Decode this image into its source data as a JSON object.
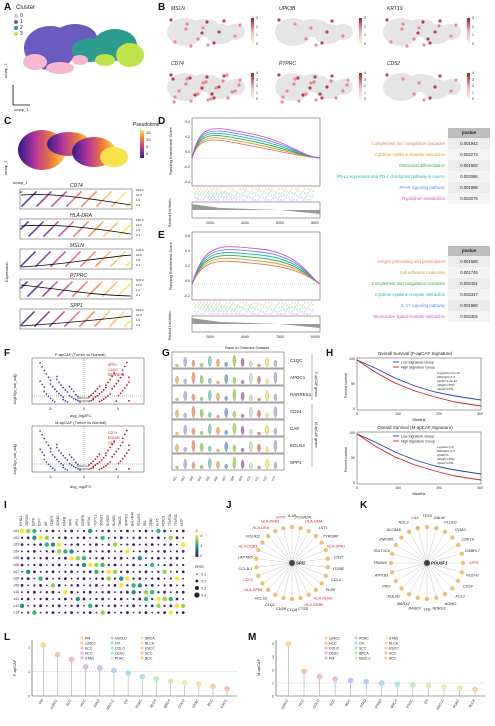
{
  "panels": {
    "A": {
      "letter": "A",
      "legend_title": "Cluster",
      "clusters": [
        "0",
        "1",
        "2",
        "3"
      ],
      "colors": [
        "#f7b6d2",
        "#6b5bbf",
        "#2e9b8f",
        "#bfe34a"
      ],
      "xlabel": "umap_1",
      "ylabel": "umap_2"
    },
    "B": {
      "letter": "B",
      "genes": [
        "MSLN",
        "UPK3B",
        "KRT19",
        "CD74",
        "PTPRC",
        "CD52"
      ],
      "scale_top": [
        "3",
        "2",
        "1",
        "0"
      ],
      "scale_mid": [
        "4",
        "3",
        "2",
        "1",
        "0"
      ]
    },
    "C": {
      "letter": "C",
      "legend_title": "Pseudotime",
      "scale": [
        "15",
        "10",
        "5",
        "0"
      ],
      "xlabel": "umap_1",
      "ylabel": "umap_2",
      "track_genes": [
        "CD74",
        "HLA-DRA",
        "MSLN",
        "PTPRC",
        "SPP1"
      ],
      "yaxis": "Expression",
      "track_scale": [
        "100.0",
        "10.0",
        "1.0",
        "0.1"
      ]
    },
    "D": {
      "letter": "D",
      "ylabel": "Running Enrichment Score",
      "ylabel2": "Ranked List Metric",
      "xlabel": "Rank in Ordered Dataset",
      "xticks": [
        "2000",
        "4000",
        "6000",
        "8000"
      ],
      "yticks": [
        "0.4",
        "0.2",
        "0.0",
        "-0.2",
        "-0.4"
      ],
      "table_header": "pvalue",
      "rows": [
        {
          "label": "Complement and coagulation cascades",
          "pvalue": "0.001942",
          "color": "#e07b5b"
        },
        {
          "label": "Cytokine-cytokine receptor interaction",
          "pvalue": "0.002273",
          "color": "#c9a227"
        },
        {
          "label": "Osteoclast differentiation",
          "pvalue": "0.001992",
          "color": "#2fae4a"
        },
        {
          "label": "PD-L1 expression and PD-1 checkpoint pathway in cancer",
          "pvalue": "0.002066",
          "color": "#1bb5b0"
        },
        {
          "label": "PPAR signaling pathway",
          "pvalue": "0.001996",
          "color": "#5b8de8"
        },
        {
          "label": "Tryptophan metabolism",
          "pvalue": "0.002079",
          "color": "#d451c9"
        }
      ]
    },
    "E": {
      "letter": "E",
      "ylabel": "Running Enrichment Score",
      "ylabel2": "Ranked List Metric",
      "xlabel": "Rank in Ordered Dataset",
      "xticks": [
        "2500",
        "5000",
        "7500",
        "10000"
      ],
      "yticks": [
        "0.6",
        "0.4",
        "0.2",
        "0.0",
        "-0.2"
      ],
      "table_header": "pvalue",
      "rows": [
        {
          "label": "Antigen processing and presentation",
          "pvalue": "0.001686",
          "color": "#e07b5b"
        },
        {
          "label": "Cell adhesion molecules",
          "pvalue": "0.001745",
          "color": "#c9a227"
        },
        {
          "label": "Complement and coagulation cascades",
          "pvalue": "0.002451",
          "color": "#2fae4a"
        },
        {
          "label": "Cytokine-cytokine receptor interaction",
          "pvalue": "0.002347",
          "color": "#1bb5b0"
        },
        {
          "label": "IL-17 signaling pathway",
          "pvalue": "0.001986",
          "color": "#5b8de8"
        },
        {
          "label": "Neuroactive ligand-receptor interaction",
          "pvalue": "0.002304",
          "color": "#d451c9"
        }
      ]
    },
    "F": {
      "letter": "F",
      "top_title": "F-apCAF (Tumor vs Normal)",
      "bottom_title": "M-apCAF (Tumor vs Normal)",
      "xlabel": "avg_log2FC",
      "ylabel": "-log10(p_val_adj)",
      "top_genes": [
        "SPP1",
        "C1QC",
        "RARRES1"
      ],
      "bottom_genes": [
        "CD74",
        "EGLN3",
        "CA9"
      ],
      "xticks": [
        "-5",
        "0",
        "5"
      ]
    },
    "G": {
      "letter": "G",
      "genes": [
        "C1QC",
        "APOC1",
        "RARRES1",
        "CD24",
        "CA9",
        "EGLN3",
        "SPP1"
      ],
      "group1": "F-apCAF genes",
      "group2": "M-apCAF genes",
      "clusters": [
        "c01",
        "c02",
        "c03",
        "c04",
        "c05",
        "c06",
        "c07",
        "c08",
        "c09",
        "c10",
        "c11",
        "c12",
        "c13"
      ]
    },
    "H": {
      "letter": "H",
      "title1": "Overall Survival (F-apCAF Signature)",
      "title2": "Overall Survival (M-apCAF Signature)",
      "legend_low": "Low Signature Group",
      "legend_high": "High Signature Group",
      "xlabel": "Months",
      "ylabel": "Percent survival",
      "stats1": [
        "Logrank p=1e-15",
        "HR(high)=1.3",
        "p(HR)=1.2e-16",
        "n(high)=4751",
        "n(low)=4751"
      ],
      "stats2": [
        "Logrank p=0",
        "HR(high)=1.5",
        "p(HR)=0",
        "n(high)=4751",
        "n(low)=4751"
      ],
      "xticks": [
        "0",
        "100",
        "200",
        "300"
      ],
      "yticks": [
        "100",
        "50",
        "0"
      ]
    },
    "I": {
      "letter": "I",
      "genes": [
        "MYBL2",
        "ZNF324",
        "E2F8",
        "E2F7",
        "AR",
        "FOXP2",
        "SOX10",
        "MAFB",
        "IRF8",
        "SPI1",
        "CEBPB",
        "HIF1A",
        "TCF7L2",
        "SMAD3",
        "RUNX3",
        "RUNX1",
        "TBX21",
        "NFATC2",
        "BHLHE40",
        "POU2F2",
        "REL",
        "ZEB2",
        "KLF5",
        "FOXC1",
        "TFAP2A",
        "TFAP2C",
        "MITF"
      ],
      "rows": [
        "c01",
        "c02",
        "c03",
        "c04",
        "c05",
        "c06",
        "c07",
        "c08",
        "c09",
        "c10",
        "c11",
        "c12",
        "c13"
      ],
      "z_label": "Z",
      "z_ticks": [
        "4",
        "2",
        "0"
      ],
      "rss_label": "RSS",
      "rss_ticks": [
        "0.1",
        "0.2",
        "0.3",
        "0.4"
      ]
    },
    "J": {
      "letter": "J",
      "hub": "SPI1",
      "nodes": [
        {
          "label": "IL1B",
          "red": false
        },
        {
          "label": "FCGR2A",
          "red": false
        },
        {
          "label": "HLA-DMA",
          "red": true
        },
        {
          "label": "LST1",
          "red": false
        },
        {
          "label": "TYROBP",
          "red": false
        },
        {
          "label": "HLA-DPA1",
          "red": true
        },
        {
          "label": "CD37",
          "red": false
        },
        {
          "label": "ITGB2",
          "red": false
        },
        {
          "label": "CCL4",
          "red": false
        },
        {
          "label": "PLEK",
          "red": false
        },
        {
          "label": "HLA-DQA2",
          "red": true
        },
        {
          "label": "HLA-DRB5",
          "red": true
        },
        {
          "label": "CTSS",
          "red": false
        },
        {
          "label": "C1QA",
          "red": false
        },
        {
          "label": "C1QB",
          "red": false
        },
        {
          "label": "C1QC",
          "red": false
        },
        {
          "label": "HCLS1",
          "red": false
        },
        {
          "label": "HLA-DPB1",
          "red": true
        },
        {
          "label": "CD74",
          "red": true
        },
        {
          "label": "CCL3L1",
          "red": false
        },
        {
          "label": "LAPTM5",
          "red": false
        },
        {
          "label": "HLA-DQB1",
          "red": true
        },
        {
          "label": "POLR2L",
          "red": false
        },
        {
          "label": "HLA-DRA",
          "red": true
        },
        {
          "label": "HLA-DRB1",
          "red": true
        },
        {
          "label": "SPP1",
          "red": true
        }
      ]
    },
    "K": {
      "letter": "K",
      "hub": "POU5F1",
      "nodes": [
        {
          "label": "TEX9",
          "red": false
        },
        {
          "label": "GALM",
          "red": false
        },
        {
          "label": "PLOD2",
          "red": false
        },
        {
          "label": "ITGA3",
          "red": false
        },
        {
          "label": "CDK18",
          "red": false
        },
        {
          "label": "OSBPL7",
          "red": false
        },
        {
          "label": "SPP1",
          "red": true
        },
        {
          "label": "NCEH1",
          "red": false
        },
        {
          "label": "CD24",
          "red": false
        },
        {
          "label": "KCL1",
          "red": false
        },
        {
          "label": "AGMO",
          "red": false
        },
        {
          "label": "NDRG1",
          "red": false
        },
        {
          "label": "TFR",
          "red": false
        },
        {
          "label": "RASEF",
          "red": false
        },
        {
          "label": "BARX2",
          "red": false
        },
        {
          "label": "EGLN1",
          "red": false
        },
        {
          "label": "PIK3",
          "red": false
        },
        {
          "label": "ATP1B1",
          "red": false
        },
        {
          "label": "TRIM44",
          "red": false
        },
        {
          "label": "SULT1C4",
          "red": false
        },
        {
          "label": "ZNF385",
          "red": false
        },
        {
          "label": "SLC6A6",
          "red": false
        },
        {
          "label": "NOL3",
          "red": false
        },
        {
          "label": "CA9",
          "red": true
        }
      ]
    },
    "L": {
      "letter": "L",
      "ylabel": "F-apCAF",
      "legend": [
        "PM",
        "ccRCC",
        "SCC",
        "HCC",
        "STAD",
        "NSCLC",
        "OV",
        "COLO",
        "CESC",
        "PDAC",
        "BRCA",
        "BLCA",
        "ESCC",
        "SCC",
        "BCC"
      ],
      "categories": [
        "PM",
        "ccRCC",
        "SCC",
        "HCC",
        "STAD",
        "NSCLC",
        "OV",
        "PDAC",
        "BLCA",
        "BRCA",
        "COLO",
        "CESC",
        "BCC",
        "ESCC"
      ],
      "values": [
        2.1,
        1.7,
        1.5,
        1.2,
        1.15,
        1.05,
        0.95,
        0.8,
        0.7,
        0.6,
        0.55,
        0.5,
        0.4,
        0.3
      ],
      "yticks": [
        "2",
        "1",
        "0"
      ]
    },
    "M": {
      "letter": "M",
      "ylabel": "M-apCAF",
      "legend": [
        "ccRCC",
        "HCC",
        "COLO",
        "CESC",
        "PM",
        "PDAC",
        "OV",
        "SCC",
        "BRCA",
        "NSCLC",
        "STAD",
        "BLCA",
        "ESCC",
        "SCC",
        "BCC"
      ],
      "categories": [
        "ccRCC",
        "HCC",
        "COLO",
        "SCC",
        "BCC",
        "STAD",
        "PRAD",
        "BRCA",
        "ESCC",
        "OV",
        "NSCLC",
        "PDAC",
        "BLCA"
      ],
      "values": [
        4.0,
        1.9,
        1.5,
        1.3,
        1.2,
        1.1,
        1.0,
        0.9,
        0.85,
        0.8,
        0.7,
        0.6,
        0.5
      ],
      "yticks": [
        "4",
        "3",
        "2",
        "1",
        "0"
      ]
    }
  }
}
